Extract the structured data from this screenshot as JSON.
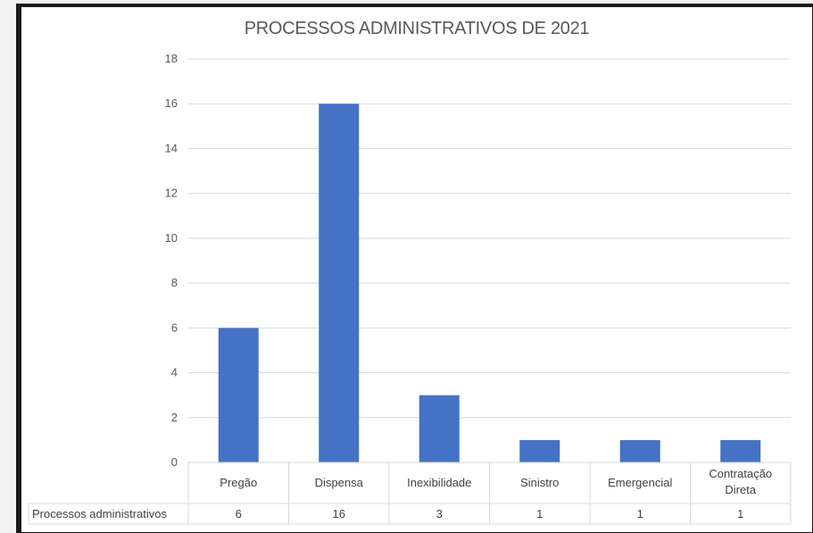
{
  "chart_data": {
    "type": "bar",
    "title": "PROCESSOS ADMINISTRATIVOS DE 2021",
    "categories": [
      "Pregão",
      "Dispensa",
      "Inexibilidade",
      "Sinistro",
      "Emergencial",
      "Contratação Direta"
    ],
    "series": [
      {
        "name": "Processos administrativos",
        "values": [
          6,
          16,
          3,
          1,
          1,
          1
        ],
        "color": "#4472c4"
      }
    ],
    "ylim": [
      0,
      18
    ],
    "yticks": [
      0,
      2,
      4,
      6,
      8,
      10,
      12,
      14,
      16,
      18
    ],
    "grid": true,
    "data_table": true
  }
}
